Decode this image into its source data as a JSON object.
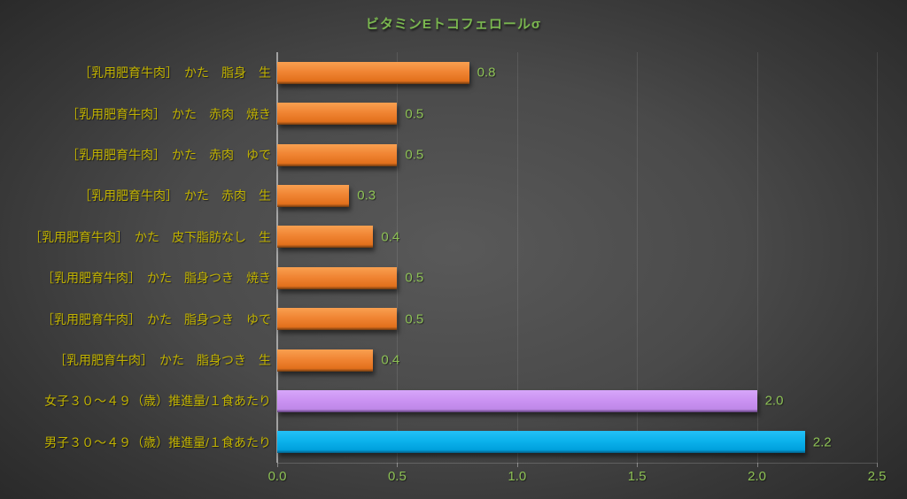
{
  "chart_data": {
    "type": "bar",
    "orientation": "horizontal",
    "title": "ビタミンEトコフェロールσ",
    "xlabel": "",
    "ylabel": "",
    "xlim": [
      0,
      2.5
    ],
    "x_ticks": [
      0.0,
      0.5,
      1.0,
      1.5,
      2.0,
      2.5
    ],
    "x_tick_labels": [
      "0.0",
      "0.5",
      "1.0",
      "1.5",
      "2.0",
      "2.5"
    ],
    "grid": true,
    "legend": "none",
    "categories": [
      "［乳用肥育牛肉］　かた　脂身　生",
      "［乳用肥育牛肉］　かた　赤肉　焼き",
      "［乳用肥育牛肉］　かた　赤肉　ゆで",
      "［乳用肥育牛肉］　かた　赤肉　生",
      "［乳用肥育牛肉］　かた　皮下脂肪なし　生",
      "［乳用肥育牛肉］　かた　脂身つき　焼き",
      "［乳用肥育牛肉］　かた　脂身つき　ゆで",
      "［乳用肥育牛肉］　かた　脂身つき　生",
      "女子３０～４９（歳）推進量/１食あたり",
      "男子３０～４９（歳）推進量/１食あたり"
    ],
    "values": [
      0.8,
      0.5,
      0.5,
      0.3,
      0.4,
      0.5,
      0.5,
      0.4,
      2.0,
      2.2
    ],
    "data_labels": [
      "0.8",
      "0.5",
      "0.5",
      "0.3",
      "0.4",
      "0.5",
      "0.5",
      "0.4",
      "2.0",
      "2.2"
    ],
    "bar_color_keys": [
      "orange",
      "orange",
      "orange",
      "orange",
      "orange",
      "orange",
      "orange",
      "orange",
      "purple",
      "blue"
    ]
  },
  "colors": {
    "title_green": "#7ab74f",
    "category_yellow": "#c2b300",
    "value_green": "#8dc155",
    "tick_green": "#8dc155",
    "orange_top": "#f9a050",
    "orange_mid": "#f08433",
    "orange_bottom": "#e2701c",
    "orange_edge": "#6e3a10",
    "purple_top": "#d7a6fa",
    "purple_mid": "#cb93f2",
    "purple_bottom": "#bf88e8",
    "purple_edge": "#5d3f78",
    "blue_top": "#24c0f6",
    "blue_mid": "#0cb2ec",
    "blue_bottom": "#00a0dd",
    "blue_edge": "#055e85",
    "gridline": "rgba(255,255,255,0.10)",
    "axis_line": "rgba(225,225,225,0.60)",
    "baseline": "rgba(255,255,255,0.18)",
    "tick_mark": "rgba(255,255,255,0.38)"
  }
}
